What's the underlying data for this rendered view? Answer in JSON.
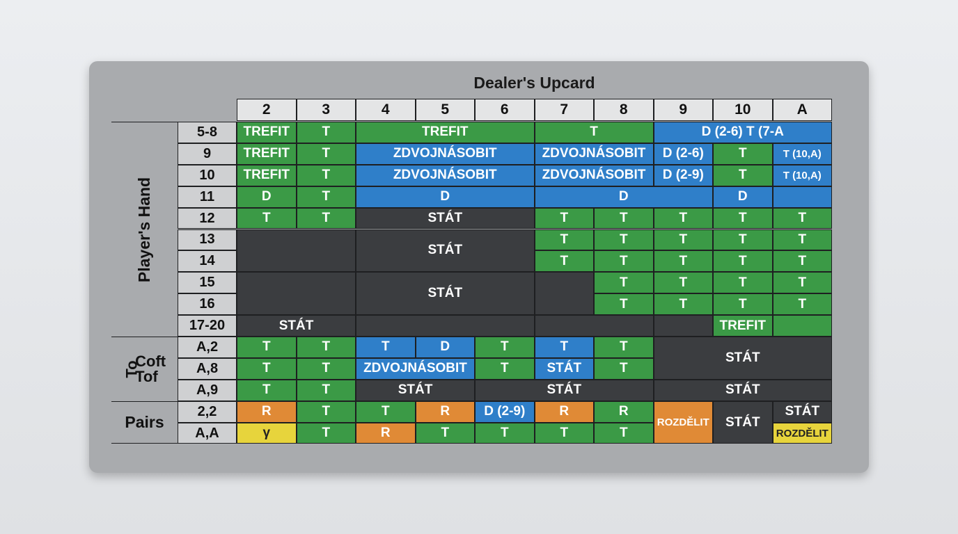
{
  "header": {
    "title": "Dealer's Upcard",
    "columns": [
      "2",
      "3",
      "4",
      "5",
      "6",
      "7",
      "8",
      "9",
      "10",
      "A"
    ]
  },
  "groups": [
    {
      "label": [
        "Player's Hand"
      ]
    },
    {
      "label": [
        "To",
        "Coft",
        "Tof"
      ]
    },
    {
      "label": [
        "Pairs"
      ]
    }
  ],
  "colors": {
    "green": "#3b9a46",
    "blue": "#2f7fc9",
    "dark": "#3b3d40",
    "orange": "#e08a36",
    "yellow": "#e7d43c"
  },
  "rows": [
    {
      "label": "5-8",
      "cells": [
        {
          "text": "TREFIT",
          "color": "green"
        },
        {
          "text": "T",
          "color": "green"
        },
        {
          "text": "TREFIT",
          "color": "green"
        },
        {
          "text": "T",
          "color": "green"
        },
        {
          "text": "D (2-6) T (7-A",
          "color": "blue"
        }
      ]
    },
    {
      "label": "9",
      "cells": [
        {
          "text": "TREFIT",
          "color": "green"
        },
        {
          "text": "T",
          "color": "green"
        },
        {
          "text": "ZDVOJNÁSOBIT",
          "color": "blue"
        },
        {
          "text": "ZDVOJNÁSOBIT",
          "color": "blue"
        },
        {
          "text": "D (2-6)",
          "color": "blue"
        },
        {
          "text": "T",
          "color": "green"
        },
        {
          "text": "T (10,A)",
          "color": "blue"
        }
      ]
    },
    {
      "label": "10",
      "cells": [
        {
          "text": "TREFIT",
          "color": "green"
        },
        {
          "text": "T",
          "color": "green"
        },
        {
          "text": "ZDVOJNÁSOBIT",
          "color": "blue"
        },
        {
          "text": "ZDVOJNÁSOBIT",
          "color": "blue"
        },
        {
          "text": "D (2-9)",
          "color": "blue"
        },
        {
          "text": "T",
          "color": "green"
        },
        {
          "text": "T (10,A)",
          "color": "blue"
        }
      ]
    },
    {
      "label": "11",
      "cells": [
        {
          "text": "D",
          "color": "green"
        },
        {
          "text": "T",
          "color": "green"
        },
        {
          "text": "D",
          "color": "blue"
        },
        {
          "text": "D",
          "color": "blue"
        },
        {
          "text": "D",
          "color": "blue"
        }
      ]
    },
    {
      "label": "12",
      "cells": [
        {
          "text": "T",
          "color": "green"
        },
        {
          "text": "T",
          "color": "green"
        },
        {
          "text": "STÁT",
          "color": "dark"
        },
        {
          "text": "T",
          "color": "green"
        },
        {
          "text": "T",
          "color": "green"
        },
        {
          "text": "T",
          "color": "green"
        },
        {
          "text": "T",
          "color": "green"
        },
        {
          "text": "T",
          "color": "green"
        }
      ]
    },
    {
      "label": "13",
      "cells": [
        {
          "text": "STÁT",
          "color": "dark"
        },
        {
          "text": "T",
          "color": "green"
        },
        {
          "text": "T",
          "color": "green"
        },
        {
          "text": "T",
          "color": "green"
        },
        {
          "text": "T",
          "color": "green"
        },
        {
          "text": "T",
          "color": "green"
        }
      ]
    },
    {
      "label": "14",
      "cells": [
        {
          "text": "T",
          "color": "green"
        },
        {
          "text": "T",
          "color": "green"
        },
        {
          "text": "T",
          "color": "green"
        },
        {
          "text": "T",
          "color": "green"
        },
        {
          "text": "T",
          "color": "green"
        }
      ]
    },
    {
      "label": "15",
      "cells": [
        {
          "text": "STÁT",
          "color": "dark"
        },
        {
          "text": "T",
          "color": "green"
        },
        {
          "text": "T",
          "color": "green"
        },
        {
          "text": "T",
          "color": "green"
        },
        {
          "text": "T",
          "color": "green"
        }
      ]
    },
    {
      "label": "16",
      "cells": [
        {
          "text": "T",
          "color": "green"
        },
        {
          "text": "T",
          "color": "green"
        },
        {
          "text": "T",
          "color": "green"
        },
        {
          "text": "T",
          "color": "green"
        }
      ]
    },
    {
      "label": "17-20",
      "cells": [
        {
          "text": "STÁT",
          "color": "dark"
        },
        {
          "text": "TREFIT",
          "color": "green"
        }
      ]
    },
    {
      "label": "A,2",
      "cells": [
        {
          "text": "T",
          "color": "green"
        },
        {
          "text": "T",
          "color": "green"
        },
        {
          "text": "T",
          "color": "blue"
        },
        {
          "text": "D",
          "color": "blue"
        },
        {
          "text": "T",
          "color": "green"
        },
        {
          "text": "T",
          "color": "blue"
        },
        {
          "text": "T",
          "color": "green"
        },
        {
          "text": "STÁT",
          "color": "dark"
        }
      ]
    },
    {
      "label": "A,8",
      "cells": [
        {
          "text": "T",
          "color": "green"
        },
        {
          "text": "T",
          "color": "green"
        },
        {
          "text": "ZDVOJNÁSOBIT",
          "color": "blue"
        },
        {
          "text": "T",
          "color": "green"
        },
        {
          "text": "STÁT",
          "color": "blue"
        },
        {
          "text": "T",
          "color": "green"
        }
      ]
    },
    {
      "label": "A,9",
      "cells": [
        {
          "text": "T",
          "color": "green"
        },
        {
          "text": "T",
          "color": "green"
        },
        {
          "text": "STÁT",
          "color": "dark"
        },
        {
          "text": "STÁT",
          "color": "dark"
        },
        {
          "text": "STÁT",
          "color": "dark"
        }
      ]
    },
    {
      "label": "2,2",
      "cells": [
        {
          "text": "R",
          "color": "orange"
        },
        {
          "text": "T",
          "color": "green"
        },
        {
          "text": "T",
          "color": "green"
        },
        {
          "text": "R",
          "color": "orange"
        },
        {
          "text": "D (2-9)",
          "color": "blue"
        },
        {
          "text": "R",
          "color": "orange"
        },
        {
          "text": "R",
          "color": "green"
        },
        {
          "text": "ROZDĚLIT",
          "color": "orange"
        },
        {
          "text": "STÁT",
          "color": "dark"
        },
        {
          "text": "STÁT",
          "color": "dark"
        }
      ]
    },
    {
      "label": "A,A",
      "cells": [
        {
          "text": "γ",
          "color": "yellow"
        },
        {
          "text": "T",
          "color": "green"
        },
        {
          "text": "R",
          "color": "orange"
        },
        {
          "text": "T",
          "color": "green"
        },
        {
          "text": "T",
          "color": "green"
        },
        {
          "text": "T",
          "color": "green"
        },
        {
          "text": "T",
          "color": "green"
        },
        {
          "text": "ROZDĚLIT",
          "color": "yellow"
        }
      ]
    }
  ]
}
